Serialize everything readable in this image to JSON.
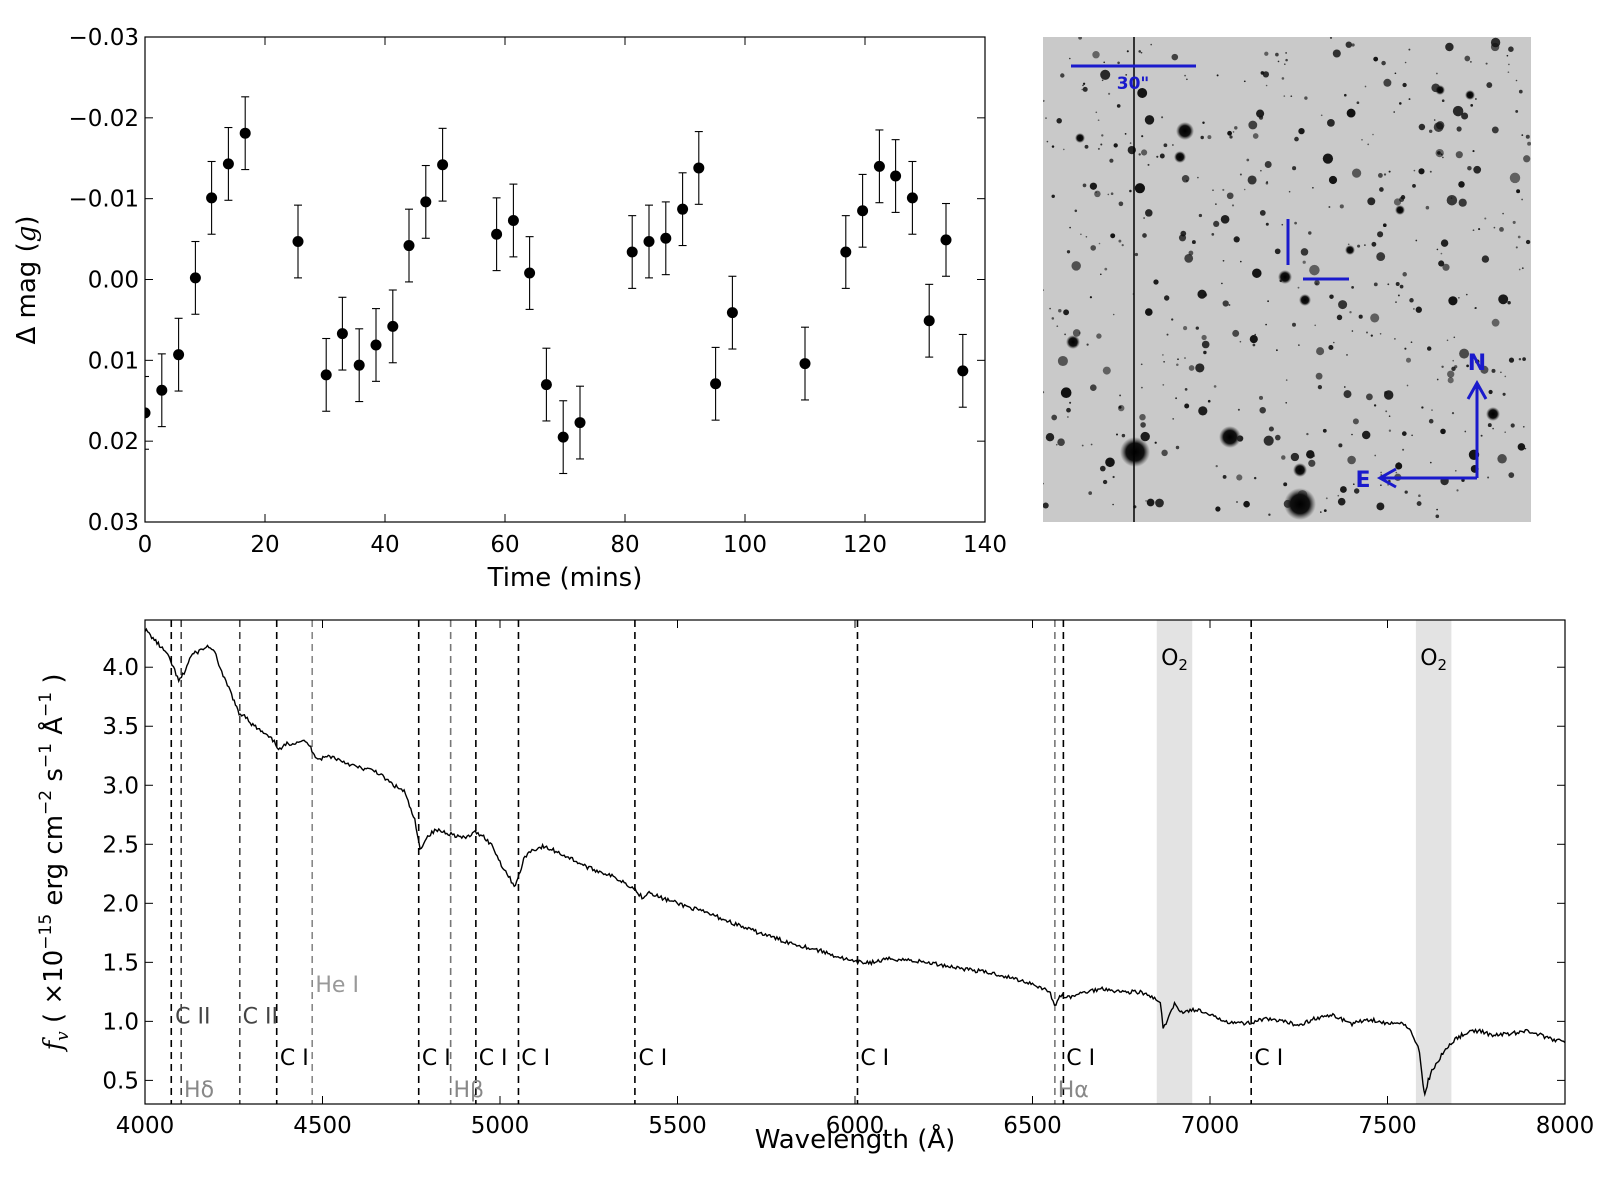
{
  "chart_data": [
    {
      "type": "scatter",
      "panel": "light curve",
      "xlabel": "Time (mins)",
      "ylabel": "Δ mag (g)",
      "ylabel_parts": {
        "prefix": "Δ mag (",
        "band": "g",
        "suffix": ")"
      },
      "xlim": [
        0,
        140
      ],
      "ylim": [
        0.03,
        -0.03
      ],
      "y_inverted": true,
      "xticks": [
        0,
        20,
        40,
        60,
        80,
        100,
        120,
        140
      ],
      "yticks": [
        -0.03,
        -0.02,
        -0.01,
        0.0,
        0.01,
        0.02,
        0.03
      ],
      "ytick_labels": [
        "−0.03",
        "−0.02",
        "−0.01",
        "0.00",
        "0.01",
        "0.02",
        "0.03"
      ],
      "error": 0.0045,
      "x": [
        0.0,
        2.8,
        5.6,
        8.4,
        11.1,
        13.9,
        16.7,
        25.5,
        30.2,
        32.9,
        35.7,
        38.5,
        41.3,
        44.0,
        46.8,
        49.6,
        58.6,
        61.4,
        64.1,
        66.9,
        69.7,
        72.5,
        81.2,
        84.0,
        86.8,
        89.6,
        92.3,
        95.1,
        97.9,
        110.0,
        116.8,
        119.6,
        122.4,
        125.1,
        127.9,
        130.7,
        133.5,
        136.3
      ],
      "y": [
        0.0165,
        0.0137,
        0.0093,
        -0.0002,
        -0.0101,
        -0.0143,
        -0.0181,
        -0.0047,
        0.0118,
        0.0067,
        0.0106,
        0.0081,
        0.0058,
        -0.0042,
        -0.0096,
        -0.0142,
        -0.0056,
        -0.0073,
        -0.0008,
        0.013,
        0.0195,
        0.0177,
        -0.0034,
        -0.0047,
        -0.0051,
        -0.0087,
        -0.0138,
        0.0129,
        0.0041,
        0.0104,
        -0.0034,
        -0.0085,
        -0.014,
        -0.0128,
        -0.0101,
        0.0051,
        -0.0049,
        0.0113
      ]
    },
    {
      "type": "line",
      "panel": "spectrum",
      "xlabel": "Wavelength (Å)",
      "ylabel": "f_v ( ×10^-15 erg cm^-2 s^-1 Å^-1 )",
      "ylabel_parts": {
        "f": "f",
        "sub": "v",
        "times": " ( ×10",
        "e15": "−15",
        "erg": " erg cm",
        "em2": "−2",
        "s": " s",
        "em1a": "−1",
        "ang": " Å",
        "em1b": "−1",
        "close": " )"
      },
      "xlim": [
        4000,
        8000
      ],
      "ylim": [
        0.3,
        4.4
      ],
      "xticks": [
        4000,
        4500,
        5000,
        5500,
        6000,
        6500,
        7000,
        7500,
        8000
      ],
      "yticks": [
        0.5,
        1.0,
        1.5,
        2.0,
        2.5,
        3.0,
        3.5,
        4.0
      ],
      "ytick_labels": [
        "0.5",
        "1.0",
        "1.5",
        "2.0",
        "2.5",
        "3.0",
        "3.5",
        "4.0"
      ],
      "spectrum_x": [
        4000,
        4030,
        4060,
        4080,
        4095,
        4110,
        4130,
        4160,
        4180,
        4200,
        4220,
        4240,
        4255,
        4265,
        4280,
        4300,
        4330,
        4360,
        4380,
        4400,
        4420,
        4440,
        4460,
        4470,
        4480,
        4490,
        4520,
        4560,
        4600,
        4650,
        4700,
        4730,
        4760,
        4775,
        4785,
        4800,
        4820,
        4850,
        4870,
        4900,
        4930,
        4950,
        4980,
        5000,
        5020,
        5040,
        5050,
        5060,
        5070,
        5090,
        5120,
        5150,
        5200,
        5250,
        5300,
        5350,
        5380,
        5400,
        5420,
        5450,
        5500,
        5600,
        5700,
        5800,
        5900,
        6000,
        6050,
        6100,
        6150,
        6200,
        6300,
        6400,
        6500,
        6550,
        6562,
        6570,
        6580,
        6600,
        6650,
        6700,
        6750,
        6800,
        6840,
        6860,
        6868,
        6880,
        6900,
        6920,
        6960,
        7000,
        7050,
        7100,
        7150,
        7200,
        7250,
        7300,
        7350,
        7400,
        7450,
        7500,
        7550,
        7570,
        7590,
        7600,
        7605,
        7615,
        7625,
        7640,
        7660,
        7690,
        7720,
        7760,
        7800,
        7850,
        7900,
        7950,
        8000
      ],
      "spectrum_y": [
        4.32,
        4.22,
        4.12,
        4.0,
        3.88,
        3.95,
        4.1,
        4.15,
        4.18,
        4.1,
        3.92,
        3.8,
        3.68,
        3.6,
        3.6,
        3.52,
        3.45,
        3.38,
        3.3,
        3.35,
        3.36,
        3.38,
        3.35,
        3.3,
        3.25,
        3.22,
        3.25,
        3.2,
        3.15,
        3.12,
        3.0,
        2.95,
        2.7,
        2.45,
        2.52,
        2.58,
        2.62,
        2.6,
        2.58,
        2.55,
        2.6,
        2.58,
        2.48,
        2.35,
        2.25,
        2.15,
        2.2,
        2.3,
        2.4,
        2.45,
        2.48,
        2.45,
        2.38,
        2.3,
        2.25,
        2.18,
        2.12,
        2.05,
        2.1,
        2.05,
        2.0,
        1.9,
        1.78,
        1.68,
        1.6,
        1.5,
        1.5,
        1.53,
        1.52,
        1.5,
        1.45,
        1.4,
        1.32,
        1.25,
        1.12,
        1.18,
        1.22,
        1.2,
        1.25,
        1.28,
        1.25,
        1.25,
        1.2,
        1.15,
        0.95,
        1.0,
        1.15,
        1.08,
        1.1,
        1.05,
        1.0,
        0.98,
        1.02,
        1.0,
        0.97,
        1.03,
        1.05,
        0.98,
        1.02,
        0.98,
        0.98,
        0.9,
        0.75,
        0.45,
        0.38,
        0.5,
        0.58,
        0.65,
        0.75,
        0.85,
        0.9,
        0.92,
        0.88,
        0.9,
        0.92,
        0.86,
        0.82
      ],
      "telluric_bands": [
        {
          "label": "O2",
          "x0": 6850,
          "x1": 6950
        },
        {
          "label": "O2",
          "x0": 7580,
          "x1": 7680
        }
      ],
      "telluric_text": {
        "O": "O",
        "sub": "2"
      },
      "lines": [
        {
          "x": 4074,
          "color": "#000000"
        },
        {
          "x": 4102,
          "color": "#444444"
        },
        {
          "x": 4267,
          "color": "#444444"
        },
        {
          "x": 4371,
          "color": "#000000"
        },
        {
          "x": 4471,
          "color": "#888888"
        },
        {
          "x": 4771,
          "color": "#000000"
        },
        {
          "x": 4861,
          "color": "#777777"
        },
        {
          "x": 4932,
          "color": "#000000"
        },
        {
          "x": 5052,
          "color": "#000000"
        },
        {
          "x": 5380,
          "color": "#000000"
        },
        {
          "x": 6007,
          "color": "#000000"
        },
        {
          "x": 6563,
          "color": "#777777"
        },
        {
          "x": 6587,
          "color": "#000000"
        },
        {
          "x": 7116,
          "color": "#000000"
        }
      ],
      "line_labels": [
        {
          "text": "C II",
          "x": 4085,
          "y": 0.98,
          "color": "#444444"
        },
        {
          "text": "C II",
          "x": 4275,
          "y": 0.98,
          "color": "#444444"
        },
        {
          "text": "He I",
          "x": 4480,
          "y": 1.25,
          "color": "#999999"
        },
        {
          "text": "C I",
          "x": 4380,
          "y": 0.63,
          "color": "#000000"
        },
        {
          "text": "C I",
          "x": 4780,
          "y": 0.63,
          "color": "#000000"
        },
        {
          "text": "C I",
          "x": 4940,
          "y": 0.63,
          "color": "#000000"
        },
        {
          "text": "C I",
          "x": 5060,
          "y": 0.63,
          "color": "#000000"
        },
        {
          "text": "C I",
          "x": 5390,
          "y": 0.63,
          "color": "#000000"
        },
        {
          "text": "C I",
          "x": 6015,
          "y": 0.63,
          "color": "#000000"
        },
        {
          "text": "C I",
          "x": 6595,
          "y": 0.63,
          "color": "#000000"
        },
        {
          "text": "C I",
          "x": 7125,
          "y": 0.63,
          "color": "#000000"
        },
        {
          "text": "Hδ",
          "x": 4110,
          "y": 0.36,
          "color": "#888888"
        },
        {
          "text": "Hβ",
          "x": 4869,
          "y": 0.36,
          "color": "#888888"
        },
        {
          "text": "Hα",
          "x": 6571,
          "y": 0.36,
          "color": "#888888"
        }
      ]
    }
  ],
  "finder_chart": {
    "scale_label": "30\"",
    "north_label": "N",
    "east_label": "E",
    "accent_color": "#1a1acc"
  }
}
